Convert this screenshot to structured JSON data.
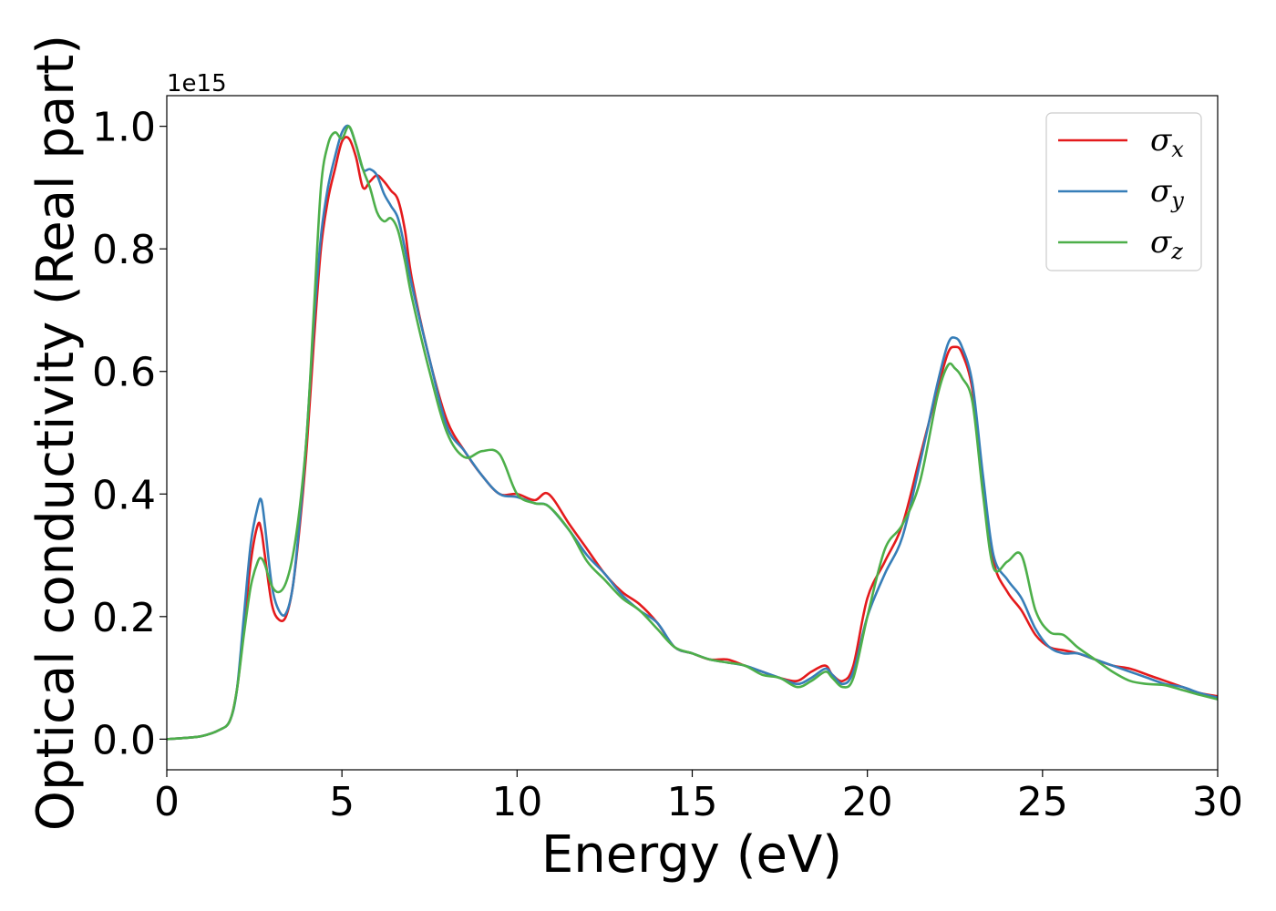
{
  "chart_data": {
    "type": "line",
    "xlabel": "Energy (eV)",
    "ylabel": "Optical conductivity (Real part)",
    "y_offset_text": "1e15",
    "y_multiplier": 1000000000000000.0,
    "xlim": [
      0,
      30
    ],
    "ylim": [
      -0.05,
      1.05
    ],
    "xticks": [
      0,
      5,
      10,
      15,
      20,
      25,
      30
    ],
    "xtick_labels": [
      "0",
      "5",
      "10",
      "15",
      "20",
      "25",
      "30"
    ],
    "yticks": [
      0.0,
      0.2,
      0.4,
      0.6,
      0.8,
      1.0
    ],
    "ytick_labels": [
      "0.0",
      "0.2",
      "0.4",
      "0.6",
      "0.8",
      "1.0"
    ],
    "grid": false,
    "legend_position": "top-right",
    "series": [
      {
        "name": "σx",
        "name_base": "σ",
        "name_sub": "x",
        "color": "#e41a1c",
        "x": [
          0,
          0.5,
          1.0,
          1.5,
          1.8,
          2.0,
          2.2,
          2.4,
          2.6,
          2.7,
          2.8,
          3.0,
          3.2,
          3.4,
          3.6,
          3.8,
          4.0,
          4.2,
          4.4,
          4.6,
          4.8,
          5.0,
          5.2,
          5.4,
          5.6,
          5.8,
          6.0,
          6.2,
          6.4,
          6.6,
          6.8,
          7.0,
          7.5,
          8.0,
          8.5,
          9.0,
          9.5,
          10.0,
          10.5,
          10.9,
          11.5,
          12.0,
          12.5,
          13.0,
          13.5,
          14.0,
          14.5,
          15.0,
          15.5,
          16.0,
          16.5,
          17.0,
          17.5,
          18.0,
          18.4,
          18.8,
          19.0,
          19.3,
          19.6,
          20.0,
          20.5,
          21.0,
          21.5,
          22.0,
          22.3,
          22.5,
          22.7,
          23.0,
          23.3,
          23.6,
          24.0,
          24.4,
          24.8,
          25.2,
          25.6,
          26.0,
          26.5,
          27.0,
          27.5,
          28.0,
          28.5,
          29.0,
          29.5,
          30.0
        ],
        "y": [
          0.0,
          0.002,
          0.005,
          0.015,
          0.03,
          0.08,
          0.18,
          0.29,
          0.35,
          0.34,
          0.3,
          0.22,
          0.195,
          0.2,
          0.25,
          0.35,
          0.48,
          0.65,
          0.8,
          0.88,
          0.93,
          0.975,
          0.98,
          0.95,
          0.9,
          0.91,
          0.92,
          0.91,
          0.895,
          0.88,
          0.83,
          0.75,
          0.62,
          0.52,
          0.47,
          0.43,
          0.4,
          0.4,
          0.39,
          0.4,
          0.35,
          0.31,
          0.27,
          0.24,
          0.22,
          0.19,
          0.15,
          0.14,
          0.13,
          0.13,
          0.12,
          0.11,
          0.1,
          0.095,
          0.11,
          0.12,
          0.105,
          0.095,
          0.12,
          0.23,
          0.29,
          0.35,
          0.46,
          0.57,
          0.63,
          0.64,
          0.63,
          0.57,
          0.42,
          0.29,
          0.24,
          0.21,
          0.17,
          0.15,
          0.145,
          0.14,
          0.13,
          0.12,
          0.115,
          0.105,
          0.095,
          0.085,
          0.075,
          0.07
        ]
      },
      {
        "name": "σy",
        "name_base": "σ",
        "name_sub": "y",
        "color": "#377eb8",
        "x": [
          0,
          0.5,
          1.0,
          1.5,
          1.8,
          2.0,
          2.2,
          2.4,
          2.6,
          2.7,
          2.8,
          3.0,
          3.2,
          3.4,
          3.6,
          3.8,
          4.0,
          4.2,
          4.4,
          4.6,
          4.8,
          5.0,
          5.2,
          5.4,
          5.6,
          5.8,
          6.0,
          6.2,
          6.4,
          6.6,
          6.8,
          7.0,
          7.5,
          8.0,
          8.5,
          9.0,
          9.5,
          10.0,
          10.5,
          10.9,
          11.5,
          12.0,
          12.5,
          13.0,
          13.5,
          14.0,
          14.5,
          15.0,
          15.5,
          16.0,
          16.5,
          17.0,
          17.5,
          18.0,
          18.4,
          18.8,
          19.0,
          19.3,
          19.6,
          20.0,
          20.5,
          21.0,
          21.5,
          22.0,
          22.3,
          22.5,
          22.7,
          23.0,
          23.3,
          23.6,
          24.0,
          24.4,
          24.8,
          25.2,
          25.6,
          26.0,
          26.5,
          27.0,
          27.5,
          28.0,
          28.5,
          29.0,
          29.5,
          30.0
        ],
        "y": [
          0.0,
          0.002,
          0.005,
          0.015,
          0.03,
          0.08,
          0.2,
          0.32,
          0.38,
          0.39,
          0.35,
          0.25,
          0.21,
          0.205,
          0.25,
          0.36,
          0.5,
          0.68,
          0.82,
          0.9,
          0.95,
          0.99,
          1.0,
          0.97,
          0.93,
          0.93,
          0.92,
          0.89,
          0.87,
          0.85,
          0.8,
          0.74,
          0.62,
          0.51,
          0.47,
          0.43,
          0.4,
          0.395,
          0.385,
          0.38,
          0.34,
          0.3,
          0.27,
          0.235,
          0.21,
          0.19,
          0.15,
          0.14,
          0.13,
          0.125,
          0.12,
          0.11,
          0.1,
          0.09,
          0.1,
          0.115,
          0.105,
          0.09,
          0.11,
          0.2,
          0.27,
          0.33,
          0.45,
          0.58,
          0.645,
          0.655,
          0.64,
          0.58,
          0.43,
          0.3,
          0.26,
          0.23,
          0.18,
          0.15,
          0.14,
          0.14,
          0.13,
          0.12,
          0.11,
          0.1,
          0.09,
          0.085,
          0.075,
          0.068
        ]
      },
      {
        "name": "σz",
        "name_base": "σ",
        "name_sub": "z",
        "color": "#4daf4a",
        "x": [
          0,
          0.5,
          1.0,
          1.5,
          1.8,
          2.0,
          2.2,
          2.4,
          2.6,
          2.7,
          2.8,
          3.0,
          3.2,
          3.4,
          3.6,
          3.8,
          4.0,
          4.2,
          4.4,
          4.6,
          4.8,
          5.0,
          5.2,
          5.4,
          5.6,
          5.8,
          6.0,
          6.2,
          6.4,
          6.6,
          6.8,
          7.0,
          7.5,
          8.0,
          8.5,
          9.0,
          9.5,
          10.0,
          10.5,
          10.9,
          11.5,
          12.0,
          12.5,
          13.0,
          13.5,
          14.0,
          14.5,
          15.0,
          15.5,
          16.0,
          16.5,
          17.0,
          17.5,
          18.0,
          18.4,
          18.8,
          19.0,
          19.3,
          19.6,
          20.0,
          20.5,
          21.0,
          21.5,
          22.0,
          22.3,
          22.5,
          22.7,
          23.0,
          23.3,
          23.6,
          24.0,
          24.4,
          24.8,
          25.2,
          25.6,
          26.0,
          26.5,
          27.0,
          27.5,
          28.0,
          28.5,
          29.0,
          29.5,
          30.0
        ],
        "y": [
          0.0,
          0.002,
          0.005,
          0.015,
          0.03,
          0.08,
          0.17,
          0.25,
          0.29,
          0.295,
          0.285,
          0.25,
          0.24,
          0.255,
          0.3,
          0.38,
          0.5,
          0.7,
          0.9,
          0.97,
          0.99,
          0.98,
          1.0,
          0.97,
          0.93,
          0.9,
          0.86,
          0.845,
          0.85,
          0.83,
          0.78,
          0.72,
          0.6,
          0.5,
          0.46,
          0.47,
          0.465,
          0.4,
          0.385,
          0.38,
          0.34,
          0.29,
          0.26,
          0.23,
          0.21,
          0.18,
          0.15,
          0.14,
          0.13,
          0.125,
          0.12,
          0.105,
          0.1,
          0.085,
          0.095,
          0.11,
          0.1,
          0.085,
          0.1,
          0.2,
          0.31,
          0.35,
          0.42,
          0.56,
          0.61,
          0.605,
          0.59,
          0.55,
          0.4,
          0.28,
          0.29,
          0.3,
          0.21,
          0.175,
          0.17,
          0.15,
          0.13,
          0.11,
          0.095,
          0.09,
          0.088,
          0.08,
          0.072,
          0.065
        ]
      }
    ]
  }
}
